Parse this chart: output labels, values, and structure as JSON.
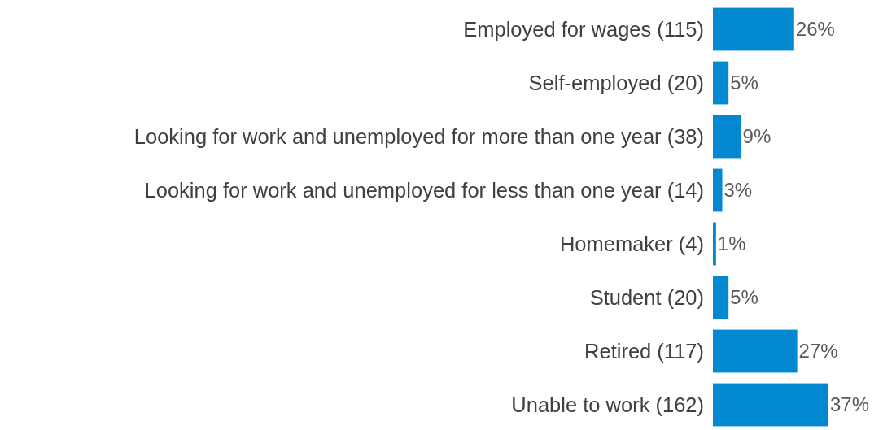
{
  "chart_data": {
    "type": "bar",
    "orientation": "horizontal",
    "categories": [
      "Employed for wages (115)",
      "Self-employed (20)",
      "Looking for work and unemployed for more than one year (38)",
      "Looking for work and unemployed for less than one year (14)",
      "Homemaker (4)",
      "Student (20)",
      "Retired (117)",
      "Unable to work (162)"
    ],
    "values": [
      26,
      5,
      9,
      3,
      1,
      5,
      27,
      37
    ],
    "value_labels": [
      "26%",
      "5%",
      "9%",
      "3%",
      "1%",
      "5%",
      "27%",
      "37%"
    ],
    "color": "#0288d1"
  }
}
